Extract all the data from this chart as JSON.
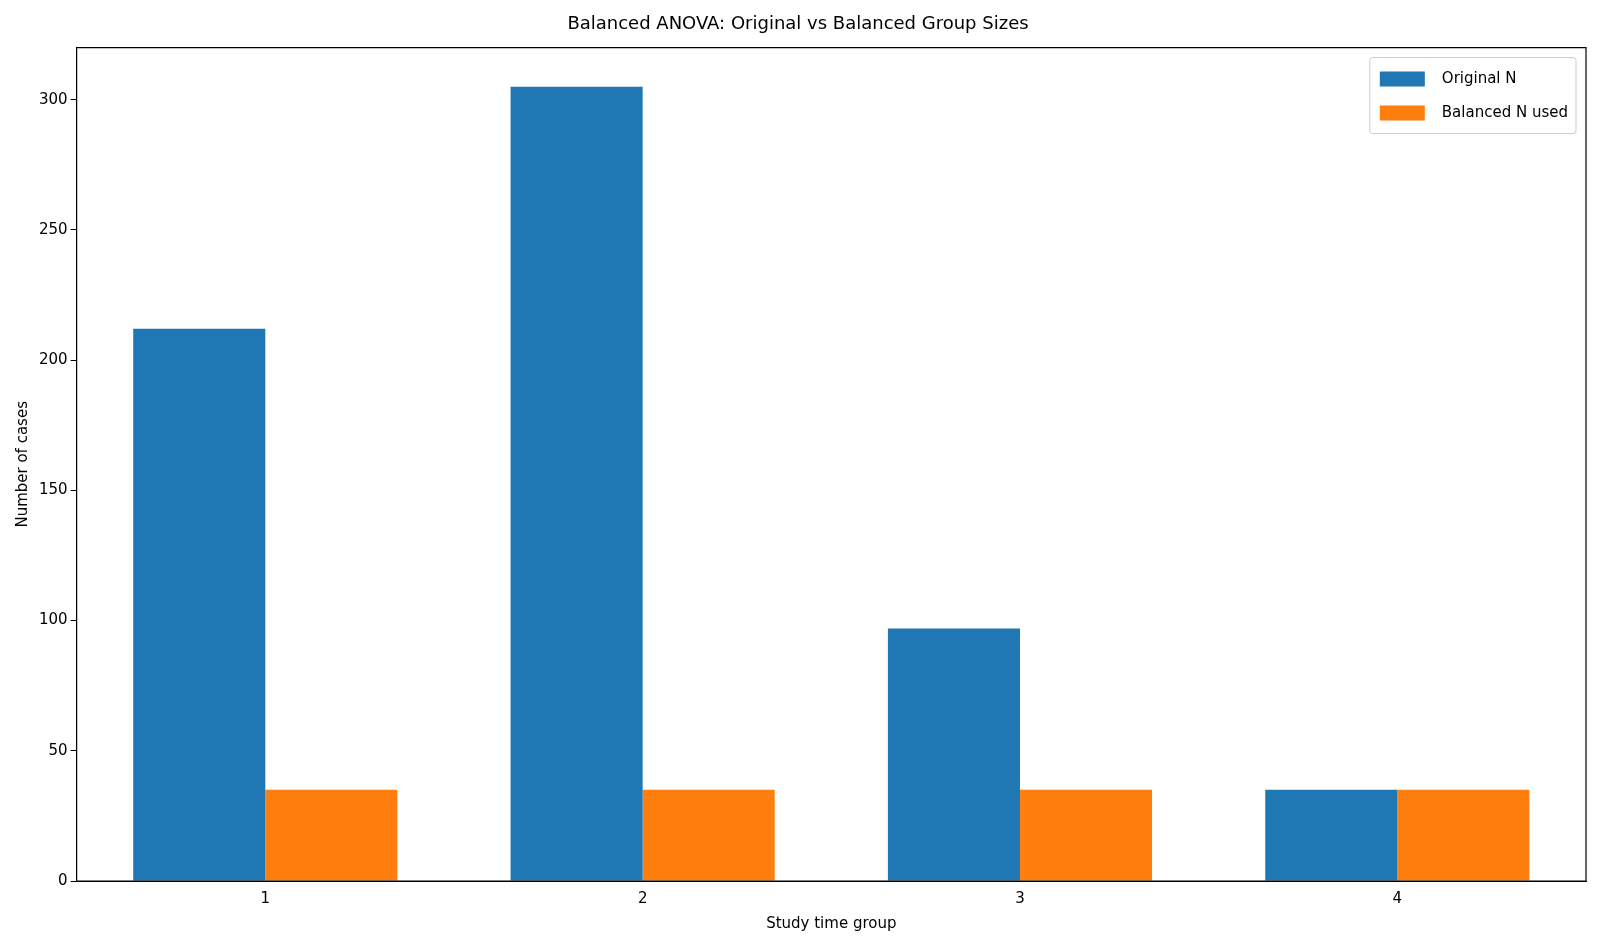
{
  "chart_data": {
    "type": "bar",
    "title": "Balanced ANOVA: Original vs Balanced Group Sizes",
    "xlabel": "Study time group",
    "ylabel": "Number of cases",
    "categories": [
      "1",
      "2",
      "3",
      "4"
    ],
    "series": [
      {
        "name": "Original N",
        "color": "#1f77b4",
        "values": [
          212,
          305,
          97,
          35
        ]
      },
      {
        "name": "Balanced N used",
        "color": "#ff7f0e",
        "values": [
          35,
          35,
          35,
          35
        ]
      }
    ],
    "ylim": [
      0,
      320
    ],
    "yticks": [
      0,
      50,
      100,
      150,
      200,
      250,
      300
    ],
    "grid": false,
    "legend": "top right"
  }
}
